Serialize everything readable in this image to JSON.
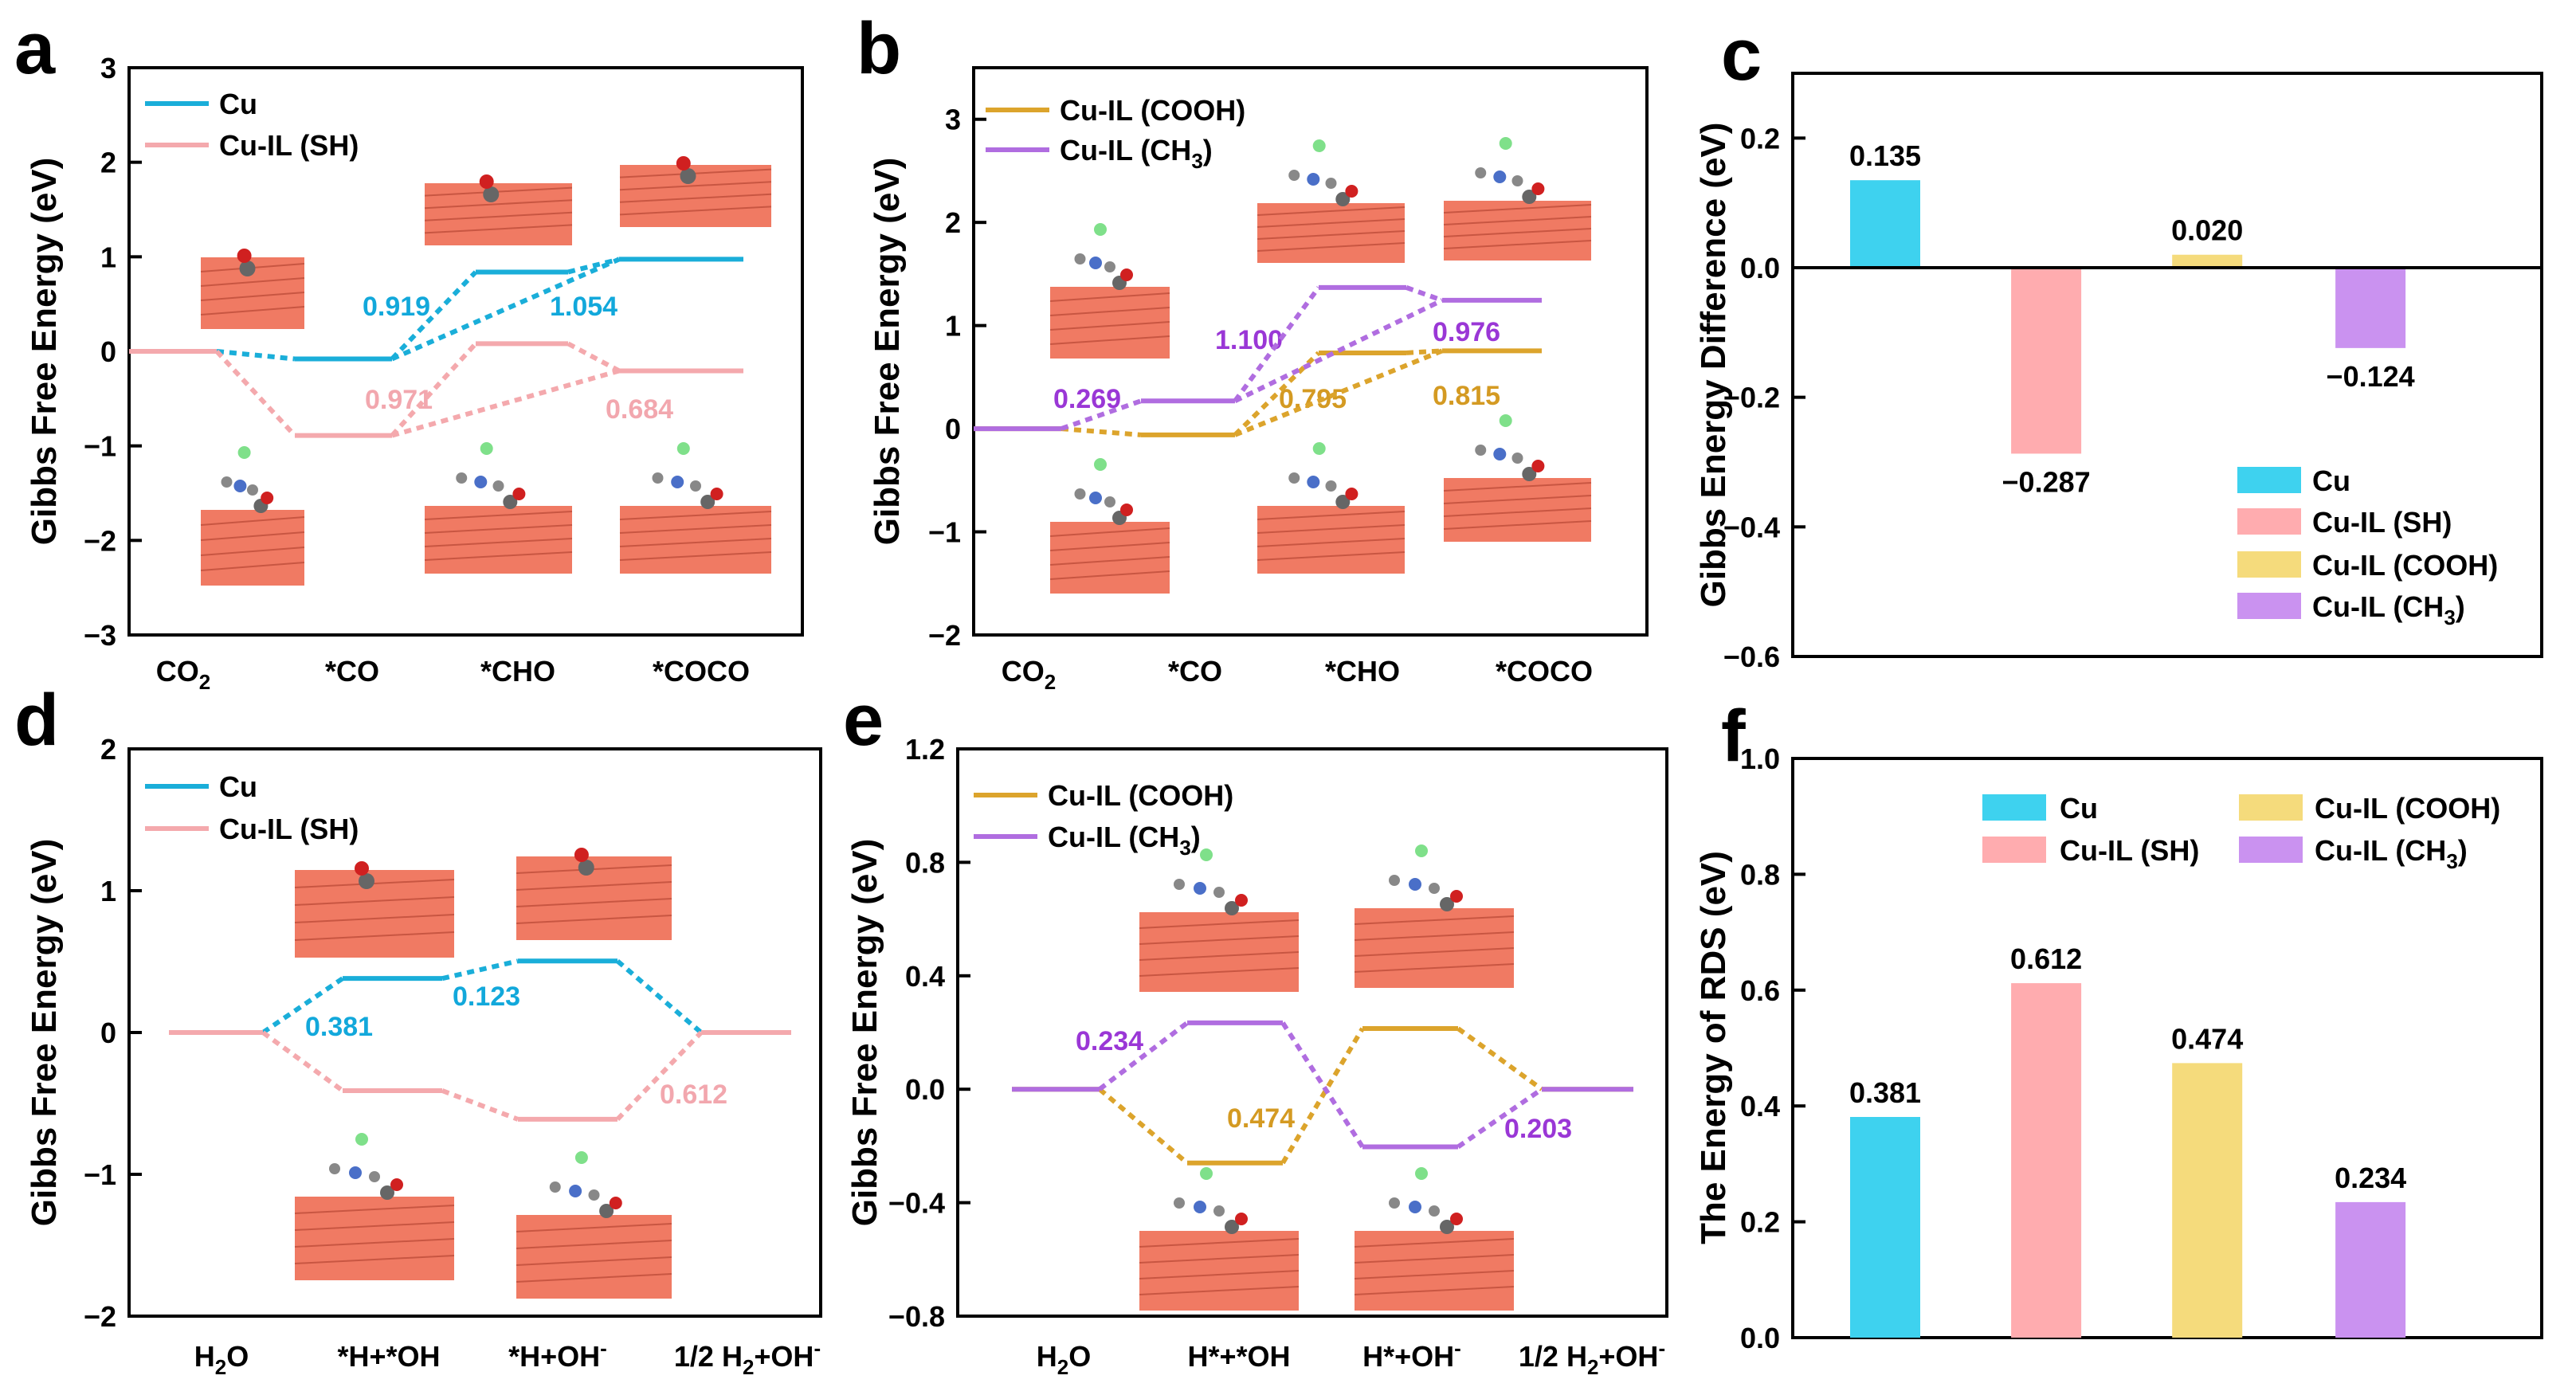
{
  "colors": {
    "cu": "#1aaed9",
    "sh": "#f4a9ad",
    "cooh": "#dca42c",
    "ch3": "#b06de0",
    "cu_bar": "#3ed2ef",
    "sh_bar": "#ffacaf",
    "cooh_bar": "#f5db7c",
    "ch3_bar": "#ca92f0",
    "slab": "#f07a63",
    "label_cu": "#12a8db",
    "label_sh": "#f2a7ae",
    "label_cooh": "#d49a22",
    "label_ch3": "#9a37d6"
  },
  "chart_data": [
    {
      "panel": "a",
      "type": "line",
      "ylabel": "Gibbs Free Energy (eV)",
      "ylim": [
        -3,
        3
      ],
      "yticks": [
        "3",
        "2",
        "1",
        "0",
        "−1",
        "−2",
        "−3"
      ],
      "categories": [
        "CO2",
        "*CO",
        "*CHO",
        "*COCO"
      ],
      "series": [
        {
          "name": "Cu",
          "values": [
            0,
            -0.08,
            0.839,
            0.974
          ]
        },
        {
          "name": "Cu-IL (SH)",
          "values": [
            0,
            -0.89,
            0.081,
            -0.206
          ]
        }
      ],
      "annotations": [
        "0.919",
        "1.054",
        "0.971",
        "0.684"
      ]
    },
    {
      "panel": "b",
      "type": "line",
      "ylabel": "Gibbs Free Energy (eV)",
      "ylim": [
        -2,
        3.5
      ],
      "yticks": [
        "3",
        "2",
        "1",
        "0",
        "−1",
        "−2"
      ],
      "categories": [
        "CO2",
        "*CO",
        "*CHO",
        "*COCO"
      ],
      "series": [
        {
          "name": "Cu-IL (COOH)",
          "values": [
            0,
            -0.06,
            0.735,
            0.755
          ]
        },
        {
          "name": "Cu-IL (CH3)",
          "values": [
            0,
            0.269,
            1.369,
            1.245
          ]
        }
      ],
      "annotations": [
        "0.269",
        "1.100",
        "0.976",
        "0.795",
        "0.815"
      ]
    },
    {
      "panel": "c",
      "type": "bar",
      "ylabel": "Gibbs Energy Difference (eV)",
      "ylim": [
        -0.6,
        0.3
      ],
      "yticks": [
        "0.2",
        "0.0",
        "−0.2",
        "−0.4",
        "−0.6"
      ],
      "categories": [
        "Cu",
        "Cu-IL (SH)",
        "Cu-IL (COOH)",
        "Cu-IL (CH3)"
      ],
      "values": [
        0.135,
        -0.287,
        0.02,
        -0.124
      ],
      "value_labels": [
        "0.135",
        "−0.287",
        "0.020",
        "−0.124"
      ]
    },
    {
      "panel": "d",
      "type": "line",
      "ylabel": "Gibbs Free Energy (eV)",
      "ylim": [
        -2,
        2
      ],
      "yticks": [
        "2",
        "1",
        "0",
        "−1",
        "−2"
      ],
      "categories": [
        "H2O",
        "*H+*OH",
        "*H+OH-",
        "1/2 H2+OH-"
      ],
      "series": [
        {
          "name": "Cu",
          "values": [
            0,
            0.381,
            0.504,
            0
          ]
        },
        {
          "name": "Cu-IL (SH)",
          "values": [
            0,
            -0.41,
            -0.612,
            0
          ]
        }
      ],
      "annotations": [
        "0.381",
        "0.123",
        "0.612"
      ]
    },
    {
      "panel": "e",
      "type": "line",
      "ylabel": "Gibbs Free Energy (eV)",
      "ylim": [
        -0.8,
        1.2
      ],
      "yticks": [
        "1.2",
        "0.8",
        "0.4",
        "0.0",
        "−0.4",
        "−0.8"
      ],
      "categories": [
        "H2O",
        "H*+*OH",
        "H*+OH-",
        "1/2 H2+OH-"
      ],
      "series": [
        {
          "name": "Cu-IL (COOH)",
          "values": [
            0,
            -0.26,
            0.214,
            0
          ]
        },
        {
          "name": "Cu-IL (CH3)",
          "values": [
            0,
            0.234,
            -0.203,
            0
          ]
        }
      ],
      "annotations": [
        "0.234",
        "0.474",
        "0.203"
      ]
    },
    {
      "panel": "f",
      "type": "bar",
      "ylabel": "The Energy of RDS (eV)",
      "ylim": [
        0,
        1.0
      ],
      "yticks": [
        "1.0",
        "0.8",
        "0.6",
        "0.4",
        "0.2",
        "0.0"
      ],
      "categories": [
        "Cu",
        "Cu-IL (SH)",
        "Cu-IL (COOH)",
        "Cu-IL (CH3)"
      ],
      "values": [
        0.381,
        0.612,
        0.474,
        0.234
      ],
      "value_labels": [
        "0.381",
        "0.612",
        "0.474",
        "0.234"
      ]
    }
  ],
  "panels": {
    "a": {
      "letter": "a",
      "xticks": {
        "t0": "CO",
        "t0_sub": "2",
        "t1": "*CO",
        "t2": "*CHO",
        "t3": "*COCO"
      },
      "legend": [
        "Cu",
        "Cu-IL (SH)"
      ],
      "annotations": [
        "0.919",
        "1.054",
        "0.971",
        "0.684"
      ]
    },
    "b": {
      "letter": "b",
      "xticks": {
        "t0": "CO",
        "t0_sub": "2",
        "t1": "*CO",
        "t2": "*CHO",
        "t3": "*COCO"
      },
      "legend": {
        "cooh": "Cu-IL (COOH)",
        "ch3_main": "Cu-IL (CH",
        "ch3_sub": "3",
        "ch3_end": ")"
      },
      "annotations": [
        "0.269",
        "1.100",
        "0.976",
        "0.795",
        "0.815"
      ]
    },
    "c": {
      "letter": "c",
      "legend": {
        "cu": "Cu",
        "sh": "Cu-IL (SH)",
        "cooh": "Cu-IL (COOH)",
        "ch3_main": "Cu-IL (CH",
        "ch3_sub": "3",
        "ch3_end": ")"
      }
    },
    "d": {
      "letter": "d",
      "xticks": {
        "t0": "H",
        "t0_sub": "2",
        "t0_end": "O",
        "t1": "*H+*OH",
        "t2": "*H+OH",
        "t2_sup": "-",
        "t3a": "1/2 H",
        "t3_sub": "2",
        "t3b": "+OH",
        "t3_sup": "-"
      },
      "legend": [
        "Cu",
        "Cu-IL (SH)"
      ],
      "annotations": [
        "0.381",
        "0.123",
        "0.612"
      ]
    },
    "e": {
      "letter": "e",
      "xticks": {
        "t0": "H",
        "t0_sub": "2",
        "t0_end": "O",
        "t1": "H*+*OH",
        "t2": "H*+OH",
        "t2_sup": "-",
        "t3a": "1/2 H",
        "t3_sub": "2",
        "t3b": "+OH",
        "t3_sup": "-"
      },
      "legend": {
        "cooh": "Cu-IL (COOH)",
        "ch3_main": "Cu-IL (CH",
        "ch3_sub": "3",
        "ch3_end": ")"
      },
      "annotations": [
        "0.234",
        "0.474",
        "0.203"
      ]
    },
    "f": {
      "letter": "f",
      "legend": {
        "cu": "Cu",
        "sh": "Cu-IL (SH)",
        "cooh": "Cu-IL (COOH)",
        "ch3_main": "Cu-IL (CH",
        "ch3_sub": "3",
        "ch3_end": ")"
      }
    }
  }
}
